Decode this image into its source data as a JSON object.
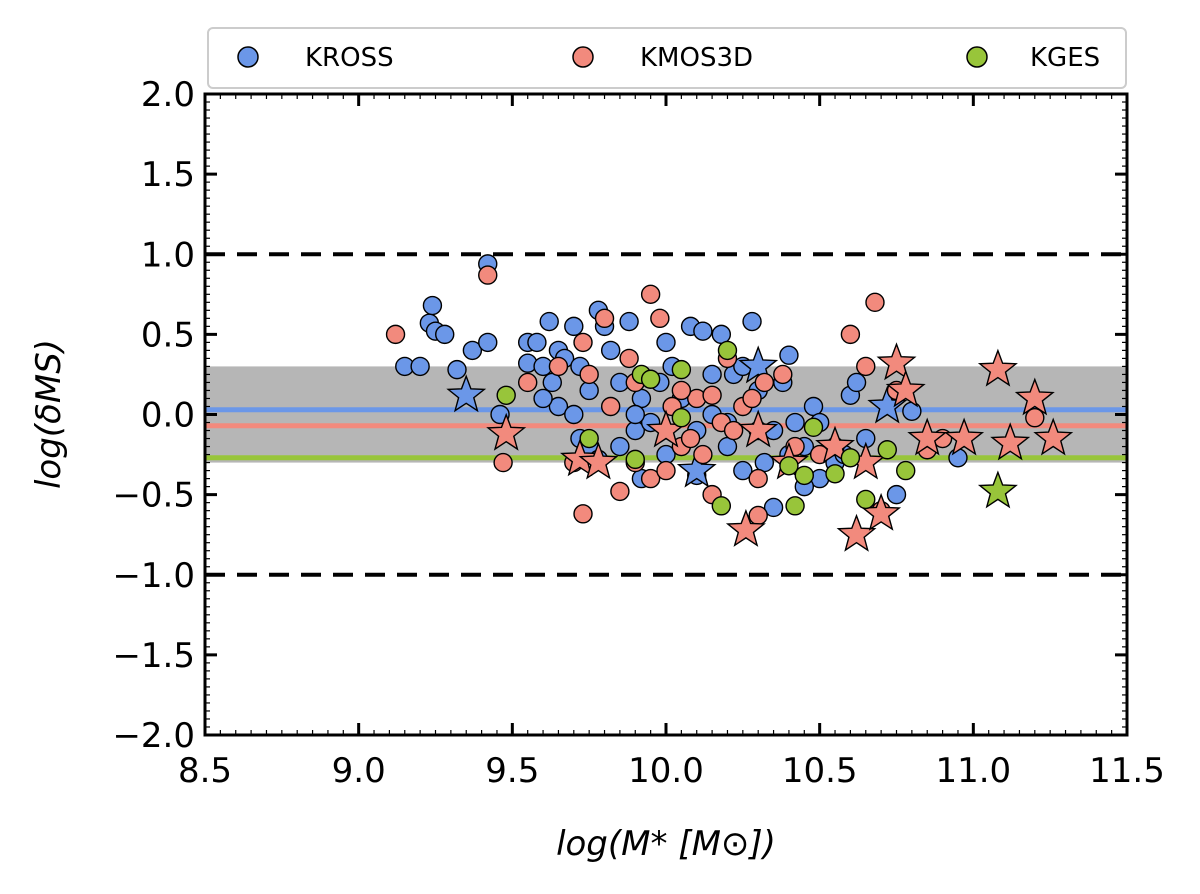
{
  "chart_data": {
    "type": "scatter",
    "xlabel": "log(M* [M⊙])",
    "ylabel": "log(δMS)",
    "xlim": [
      8.5,
      11.5
    ],
    "ylim": [
      -2.0,
      2.0
    ],
    "x_ticks": [
      8.5,
      9.0,
      9.5,
      10.0,
      10.5,
      11.0,
      11.5
    ],
    "y_ticks": [
      2.0,
      1.5,
      1.0,
      0.5,
      0.0,
      -0.5,
      -1.0,
      -1.5,
      -2.0
    ],
    "x_tick_labels": [
      "8.5",
      "9.0",
      "9.5",
      "10.0",
      "10.5",
      "11.0",
      "11.5"
    ],
    "y_tick_labels": [
      "2.0",
      "1.5",
      "1.0",
      "0.5",
      "0.0",
      "−0.5",
      "−1.0",
      "−1.5",
      "−2.0"
    ],
    "legend_position": "top (outside, above plot)",
    "shaded_band": [
      -0.3,
      0.3
    ],
    "dashed_lines": [
      1.0,
      -1.0
    ],
    "series": [
      {
        "name": "KROSS",
        "color": "#6b97e8",
        "median": 0.03,
        "circles": [
          [
            9.15,
            0.3
          ],
          [
            9.2,
            0.3
          ],
          [
            9.23,
            0.57
          ],
          [
            9.24,
            0.68
          ],
          [
            9.25,
            0.52
          ],
          [
            9.28,
            0.5
          ],
          [
            9.32,
            0.28
          ],
          [
            9.37,
            0.4
          ],
          [
            9.42,
            0.45
          ],
          [
            9.42,
            0.94
          ],
          [
            9.46,
            0.0
          ],
          [
            9.55,
            0.45
          ],
          [
            9.58,
            0.45
          ],
          [
            9.62,
            0.58
          ],
          [
            9.55,
            0.32
          ],
          [
            9.6,
            0.3
          ],
          [
            9.63,
            0.2
          ],
          [
            9.65,
            0.4
          ],
          [
            9.67,
            0.35
          ],
          [
            9.7,
            0.55
          ],
          [
            9.72,
            0.3
          ],
          [
            9.75,
            0.15
          ],
          [
            9.78,
            0.65
          ],
          [
            9.8,
            0.55
          ],
          [
            9.82,
            0.4
          ],
          [
            9.85,
            0.2
          ],
          [
            9.88,
            0.58
          ],
          [
            9.65,
            0.05
          ],
          [
            9.7,
            0.0
          ],
          [
            9.72,
            -0.15
          ],
          [
            9.75,
            -0.2
          ],
          [
            9.78,
            -0.28
          ],
          [
            9.85,
            -0.2
          ],
          [
            9.9,
            -0.1
          ],
          [
            9.92,
            0.1
          ],
          [
            9.95,
            -0.05
          ],
          [
            9.98,
            0.2
          ],
          [
            10.0,
            0.45
          ],
          [
            10.02,
            0.3
          ],
          [
            10.05,
            0.1
          ],
          [
            10.08,
            0.55
          ],
          [
            10.1,
            -0.1
          ],
          [
            10.12,
            0.52
          ],
          [
            10.15,
            0.0
          ],
          [
            10.18,
            0.5
          ],
          [
            10.2,
            -0.2
          ],
          [
            10.22,
            0.25
          ],
          [
            10.25,
            0.3
          ],
          [
            10.28,
            0.58
          ],
          [
            10.3,
            -0.1
          ],
          [
            10.32,
            -0.3
          ],
          [
            10.35,
            -0.1
          ],
          [
            10.38,
            0.2
          ],
          [
            10.4,
            0.37
          ],
          [
            10.42,
            -0.05
          ],
          [
            10.45,
            -0.2
          ],
          [
            10.48,
            0.05
          ],
          [
            10.5,
            -0.4
          ],
          [
            10.55,
            -0.3
          ],
          [
            10.58,
            -0.25
          ],
          [
            10.6,
            0.12
          ],
          [
            10.62,
            0.2
          ],
          [
            10.65,
            -0.15
          ],
          [
            10.75,
            -0.5
          ],
          [
            10.8,
            0.02
          ],
          [
            10.95,
            -0.27
          ],
          [
            9.92,
            -0.4
          ],
          [
            10.1,
            -0.38
          ],
          [
            10.25,
            -0.35
          ],
          [
            10.35,
            -0.58
          ],
          [
            10.45,
            -0.45
          ],
          [
            10.55,
            -0.2
          ],
          [
            9.6,
            0.1
          ],
          [
            9.9,
            0.0
          ],
          [
            10.15,
            0.25
          ],
          [
            10.3,
            0.15
          ],
          [
            10.0,
            -0.25
          ],
          [
            10.2,
            -0.05
          ],
          [
            10.4,
            -0.25
          ],
          [
            10.5,
            -0.05
          ]
        ],
        "stars": [
          [
            9.35,
            0.12
          ],
          [
            10.3,
            0.3
          ],
          [
            10.1,
            -0.35
          ],
          [
            10.72,
            0.05
          ]
        ]
      },
      {
        "name": "KMOS3D",
        "color": "#f28a7d",
        "median": -0.07,
        "circles": [
          [
            9.12,
            0.5
          ],
          [
            9.42,
            0.87
          ],
          [
            9.47,
            -0.3
          ],
          [
            9.55,
            0.2
          ],
          [
            9.65,
            0.3
          ],
          [
            9.7,
            -0.3
          ],
          [
            9.73,
            -0.62
          ],
          [
            9.73,
            0.45
          ],
          [
            9.75,
            0.25
          ],
          [
            9.8,
            0.6
          ],
          [
            9.82,
            0.05
          ],
          [
            9.85,
            -0.48
          ],
          [
            9.88,
            0.35
          ],
          [
            9.9,
            0.2
          ],
          [
            9.95,
            0.75
          ],
          [
            9.95,
            -0.4
          ],
          [
            9.98,
            0.6
          ],
          [
            10.0,
            -0.35
          ],
          [
            10.02,
            0.05
          ],
          [
            10.05,
            -0.2
          ],
          [
            10.08,
            -0.15
          ],
          [
            10.1,
            0.1
          ],
          [
            10.12,
            -0.25
          ],
          [
            10.15,
            0.12
          ],
          [
            10.18,
            -0.05
          ],
          [
            10.2,
            0.35
          ],
          [
            10.22,
            -0.1
          ],
          [
            10.25,
            0.05
          ],
          [
            10.28,
            0.1
          ],
          [
            10.3,
            -0.4
          ],
          [
            10.32,
            0.2
          ],
          [
            10.38,
            0.25
          ],
          [
            10.42,
            -0.2
          ],
          [
            10.5,
            -0.25
          ],
          [
            10.6,
            0.5
          ],
          [
            10.65,
            0.3
          ],
          [
            10.68,
            0.7
          ],
          [
            10.7,
            -0.6
          ],
          [
            10.75,
            0.15
          ],
          [
            10.85,
            -0.22
          ],
          [
            10.9,
            -0.15
          ],
          [
            11.2,
            -0.02
          ],
          [
            10.3,
            -0.63
          ],
          [
            10.05,
            0.15
          ],
          [
            9.9,
            -0.3
          ],
          [
            10.15,
            -0.5
          ]
        ],
        "stars": [
          [
            9.48,
            -0.12
          ],
          [
            9.72,
            -0.28
          ],
          [
            9.78,
            -0.3
          ],
          [
            10.0,
            -0.1
          ],
          [
            10.26,
            -0.72
          ],
          [
            10.3,
            -0.1
          ],
          [
            10.4,
            -0.3
          ],
          [
            10.55,
            -0.2
          ],
          [
            10.62,
            -0.75
          ],
          [
            10.65,
            -0.3
          ],
          [
            10.7,
            -0.62
          ],
          [
            10.75,
            0.32
          ],
          [
            10.78,
            0.15
          ],
          [
            10.85,
            -0.15
          ],
          [
            10.97,
            -0.15
          ],
          [
            11.08,
            0.28
          ],
          [
            11.12,
            -0.18
          ],
          [
            11.2,
            0.1
          ],
          [
            11.26,
            -0.15
          ]
        ]
      },
      {
        "name": "KGES",
        "color": "#98c53a",
        "median": -0.27,
        "circles": [
          [
            9.48,
            0.12
          ],
          [
            9.75,
            -0.15
          ],
          [
            9.9,
            -0.28
          ],
          [
            9.92,
            0.25
          ],
          [
            9.95,
            0.22
          ],
          [
            10.05,
            0.28
          ],
          [
            10.05,
            -0.02
          ],
          [
            10.18,
            -0.57
          ],
          [
            10.2,
            0.4
          ],
          [
            10.4,
            -0.32
          ],
          [
            10.42,
            -0.57
          ],
          [
            10.45,
            -0.38
          ],
          [
            10.48,
            -0.08
          ],
          [
            10.55,
            -0.37
          ],
          [
            10.6,
            -0.27
          ],
          [
            10.65,
            -0.53
          ],
          [
            10.72,
            -0.22
          ],
          [
            10.78,
            -0.35
          ]
        ],
        "stars": [
          [
            11.08,
            -0.48
          ]
        ]
      }
    ]
  }
}
